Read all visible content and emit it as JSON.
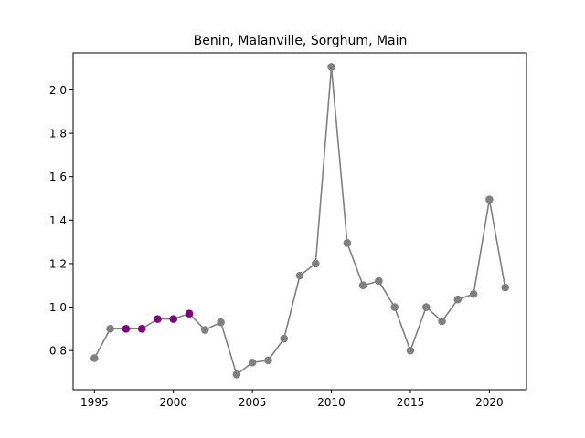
{
  "chart_data": {
    "type": "line",
    "title": "Benin, Malanville, Sorghum, Main",
    "xlabel": "",
    "ylabel": "",
    "xlim": [
      1993.65,
      2022.35
    ],
    "ylim": [
      0.62,
      2.17
    ],
    "x_ticks": [
      1995,
      2000,
      2005,
      2010,
      2015,
      2020
    ],
    "y_ticks": [
      0.8,
      1.0,
      1.2,
      1.4,
      1.6,
      1.8,
      2.0
    ],
    "grid": false,
    "legend": "none",
    "line_color": "#808080",
    "default_marker_color": "#808080",
    "highlight_marker_color": "#800080",
    "highlighted_years": [
      1997,
      1998,
      1999,
      2000,
      2001
    ],
    "series": [
      {
        "x": [
          1995,
          1996,
          1997,
          1998,
          1999,
          2000,
          2001,
          2002,
          2003,
          2004,
          2005,
          2006,
          2007,
          2008,
          2009,
          2010,
          2011,
          2012,
          2013,
          2014,
          2015,
          2016,
          2017,
          2018,
          2019,
          2020,
          2021
        ],
        "y": [
          0.765,
          0.9,
          0.9,
          0.9,
          0.945,
          0.945,
          0.97,
          0.895,
          0.93,
          0.69,
          0.745,
          0.755,
          0.855,
          1.145,
          1.2,
          2.105,
          1.295,
          1.1,
          1.12,
          1.0,
          0.8,
          1.0,
          0.935,
          1.035,
          1.06,
          1.495,
          1.09
        ]
      }
    ]
  }
}
